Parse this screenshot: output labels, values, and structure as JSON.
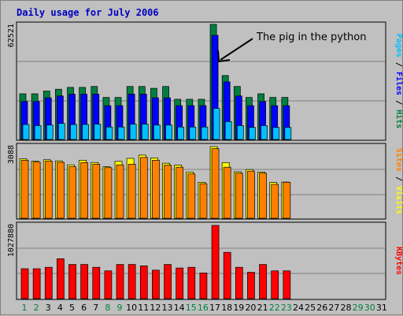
{
  "chart_data": [
    {
      "type": "bar",
      "title": "Daily usage for July 2006",
      "x": [
        1,
        2,
        3,
        4,
        5,
        6,
        7,
        8,
        9,
        10,
        11,
        12,
        13,
        14,
        15,
        16,
        17,
        18,
        19,
        20,
        21,
        22,
        23,
        24,
        25,
        26,
        27,
        28,
        29,
        30,
        31
      ],
      "weekend_days": [
        1,
        2,
        8,
        9,
        15,
        16,
        22,
        23,
        29,
        30
      ],
      "panels": [
        {
          "name": "hits-files-pages",
          "max_label": "62521",
          "ymax": 62521,
          "series": [
            {
              "name": "Hits",
              "color": "#008040",
              "values": [
                25000,
                25000,
                26500,
                27500,
                28500,
                28500,
                29000,
                23000,
                23000,
                29000,
                29000,
                28000,
                29000,
                22000,
                22000,
                22000,
                63000,
                35000,
                29000,
                23000,
                25000,
                23000,
                23000
              ]
            },
            {
              "name": "Files",
              "color": "#0000FF",
              "values": [
                20800,
                20800,
                22800,
                23800,
                24800,
                24800,
                24800,
                18500,
                18500,
                24800,
                24800,
                22800,
                22800,
                18500,
                18500,
                18500,
                57000,
                31500,
                23800,
                18500,
                20800,
                18500,
                18500
              ]
            },
            {
              "name": "Pages",
              "color": "#00C0FF",
              "values": [
                8200,
                7600,
                7900,
                8800,
                8200,
                8200,
                8400,
                6800,
                6800,
                8400,
                8400,
                7900,
                7900,
                6800,
                6800,
                6800,
                17000,
                9800,
                7600,
                6600,
                7600,
                6600,
                6600
              ]
            }
          ],
          "annotation": "The pig in the python",
          "axis_label": [
            {
              "text": "Pages",
              "color": "#00C0FF"
            },
            {
              "text": " / ",
              "color": "#000000"
            },
            {
              "text": "Files",
              "color": "#0000FF"
            },
            {
              "text": " / ",
              "color": "#000000"
            },
            {
              "text": "Hits",
              "color": "#008040"
            }
          ]
        },
        {
          "name": "visits-sites",
          "max_label": "3088",
          "ymax": 3088,
          "series": [
            {
              "name": "Visits",
              "color": "#FFFF00",
              "values": [
                2560,
                2460,
                2520,
                2470,
                2300,
                2500,
                2400,
                2220,
                2450,
                2580,
                2720,
                2600,
                2370,
                2290,
                1990,
                1550,
                3088,
                2400,
                2000,
                2100,
                1990,
                1540,
                1560
              ]
            },
            {
              "name": "Sites",
              "color": "#FF8000",
              "values": [
                2500,
                2420,
                2460,
                2410,
                2220,
                2400,
                2330,
                2180,
                2300,
                2330,
                2620,
                2500,
                2290,
                2200,
                1910,
                1490,
                3000,
                2200,
                1940,
                2030,
                1940,
                1460,
                1550
              ]
            }
          ],
          "axis_label": [
            {
              "text": "Sites",
              "color": "#FF8000"
            },
            {
              "text": " / ",
              "color": "#000000"
            },
            {
              "text": "Visits",
              "color": "#FFFF00"
            }
          ]
        },
        {
          "name": "kbytes",
          "max_label": "1027880",
          "ymax": 1027880,
          "series": [
            {
              "name": "KBytes",
              "color": "#FF0000",
              "values": [
                420000,
                420000,
                440000,
                560000,
                480000,
                480000,
                440000,
                390000,
                480000,
                480000,
                460000,
                400000,
                480000,
                430000,
                440000,
                360000,
                1027880,
                650000,
                440000,
                370000,
                480000,
                390000,
                390000
              ]
            }
          ],
          "axis_label": [
            {
              "text": "KBytes",
              "color": "#FF0000"
            }
          ]
        }
      ]
    }
  ]
}
